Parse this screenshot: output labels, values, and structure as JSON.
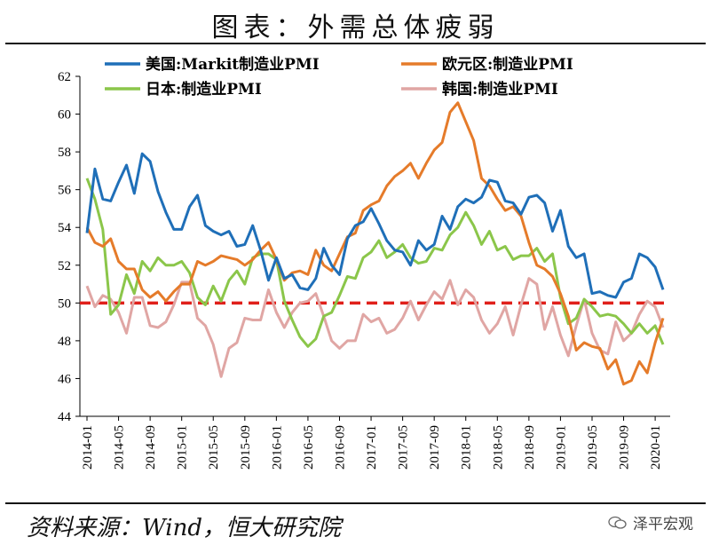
{
  "header": {
    "title": "图表：外需总体疲弱"
  },
  "footer": {
    "source": "资料来源：Wind，恒大研究院",
    "watermark": "泽平宏观"
  },
  "chart_data": {
    "type": "line",
    "x": [
      "2014-01",
      "2014-02",
      "2014-03",
      "2014-04",
      "2014-05",
      "2014-06",
      "2014-07",
      "2014-08",
      "2014-09",
      "2014-10",
      "2014-11",
      "2014-12",
      "2015-01",
      "2015-02",
      "2015-03",
      "2015-04",
      "2015-05",
      "2015-06",
      "2015-07",
      "2015-08",
      "2015-09",
      "2015-10",
      "2015-11",
      "2015-12",
      "2016-01",
      "2016-02",
      "2016-03",
      "2016-04",
      "2016-05",
      "2016-06",
      "2016-07",
      "2016-08",
      "2016-09",
      "2016-10",
      "2016-11",
      "2016-12",
      "2017-01",
      "2017-02",
      "2017-03",
      "2017-04",
      "2017-05",
      "2017-06",
      "2017-07",
      "2017-08",
      "2017-09",
      "2017-10",
      "2017-11",
      "2017-12",
      "2018-01",
      "2018-02",
      "2018-03",
      "2018-04",
      "2018-05",
      "2018-06",
      "2018-07",
      "2018-08",
      "2018-09",
      "2018-10",
      "2018-11",
      "2018-12",
      "2019-01",
      "2019-02",
      "2019-03",
      "2019-04",
      "2019-05",
      "2019-06",
      "2019-07",
      "2019-08",
      "2019-09",
      "2019-10",
      "2019-11",
      "2019-12",
      "2020-01",
      "2020-02"
    ],
    "xticks": [
      "2014-01",
      "2014-05",
      "2014-09",
      "2015-01",
      "2015-05",
      "2015-09",
      "2016-01",
      "2016-05",
      "2016-09",
      "2017-01",
      "2017-05",
      "2017-09",
      "2018-01",
      "2018-05",
      "2018-09",
      "2019-01",
      "2019-05",
      "2019-09",
      "2020-01"
    ],
    "ylim": [
      44,
      62
    ],
    "yticks": [
      44,
      46,
      48,
      50,
      52,
      54,
      56,
      58,
      60,
      62
    ],
    "reference_line": {
      "y": 50,
      "color": "#e0201b",
      "style": "dashed"
    },
    "legend_placement": "top",
    "series": [
      {
        "name": "美国:Markit制造业PMI",
        "color": "#1f6fb8",
        "values": [
          53.7,
          57.1,
          55.5,
          55.4,
          56.4,
          57.3,
          55.8,
          57.9,
          57.5,
          55.9,
          54.8,
          53.9,
          53.9,
          55.1,
          55.7,
          54.1,
          53.8,
          53.6,
          53.8,
          53.0,
          53.1,
          54.1,
          52.8,
          51.2,
          52.4,
          51.3,
          51.5,
          50.8,
          50.7,
          51.3,
          52.9,
          52.0,
          51.5,
          53.4,
          54.1,
          54.3,
          55.0,
          54.2,
          53.3,
          52.8,
          52.7,
          52.0,
          53.3,
          52.8,
          53.1,
          54.6,
          53.9,
          55.1,
          55.5,
          55.3,
          55.6,
          56.5,
          56.4,
          55.4,
          55.3,
          54.7,
          55.6,
          55.7,
          55.3,
          53.8,
          54.9,
          53.0,
          52.4,
          52.6,
          50.5,
          50.6,
          50.4,
          50.3,
          51.1,
          51.3,
          52.6,
          52.4,
          51.9,
          50.7
        ]
      },
      {
        "name": "欧元区:制造业PMI",
        "color": "#e57b2a",
        "values": [
          54.0,
          53.2,
          53.0,
          53.4,
          52.2,
          51.8,
          51.8,
          50.7,
          50.3,
          50.6,
          50.1,
          50.6,
          51.0,
          51.0,
          52.2,
          52.0,
          52.2,
          52.5,
          52.4,
          52.3,
          52.0,
          52.3,
          52.8,
          53.2,
          52.3,
          51.2,
          51.6,
          51.7,
          51.5,
          52.8,
          52.0,
          51.7,
          52.6,
          53.5,
          53.7,
          54.9,
          55.2,
          55.4,
          56.2,
          56.7,
          57.0,
          57.4,
          56.6,
          57.4,
          58.1,
          58.5,
          60.1,
          60.6,
          59.6,
          58.6,
          56.6,
          56.2,
          55.5,
          54.9,
          55.1,
          54.6,
          53.2,
          52.0,
          51.8,
          51.4,
          50.5,
          49.3,
          47.5,
          47.9,
          47.7,
          47.6,
          46.5,
          47.0,
          45.7,
          45.9,
          46.9,
          46.3,
          47.9,
          49.2
        ]
      },
      {
        "name": "日本:制造业PMI",
        "color": "#8bc64a",
        "values": [
          56.6,
          55.5,
          53.9,
          49.4,
          49.9,
          51.5,
          50.5,
          52.2,
          51.7,
          52.4,
          52.0,
          52.0,
          52.2,
          51.6,
          50.3,
          49.9,
          50.9,
          50.1,
          51.2,
          51.7,
          51.0,
          52.4,
          52.6,
          52.6,
          52.3,
          50.1,
          49.1,
          48.2,
          47.7,
          48.1,
          49.3,
          49.5,
          50.4,
          51.4,
          51.3,
          52.4,
          52.7,
          53.3,
          52.4,
          52.7,
          53.1,
          52.4,
          52.1,
          52.2,
          52.9,
          52.8,
          53.6,
          54.0,
          54.8,
          54.1,
          53.1,
          53.8,
          52.8,
          53.0,
          52.3,
          52.5,
          52.5,
          52.9,
          52.2,
          52.6,
          50.3,
          48.9,
          49.2,
          50.2,
          49.8,
          49.3,
          49.4,
          49.3,
          48.9,
          48.4,
          48.9,
          48.4,
          48.8,
          47.8
        ]
      },
      {
        "name": "韩国:制造业PMI",
        "color": "#e0a6a4",
        "values": [
          50.9,
          49.8,
          50.4,
          50.2,
          49.5,
          48.4,
          50.3,
          50.3,
          48.8,
          48.7,
          49.0,
          49.9,
          51.1,
          51.1,
          49.2,
          48.8,
          47.8,
          46.1,
          47.6,
          47.9,
          49.2,
          49.1,
          49.1,
          50.7,
          49.5,
          48.7,
          49.5,
          50.0,
          50.1,
          50.5,
          49.3,
          48.0,
          47.6,
          48.0,
          48.0,
          49.4,
          49.0,
          49.2,
          48.4,
          48.6,
          49.2,
          50.1,
          49.1,
          49.9,
          50.6,
          50.2,
          51.2,
          49.9,
          50.7,
          50.3,
          49.1,
          48.4,
          48.9,
          49.8,
          48.3,
          49.9,
          51.3,
          51.0,
          48.6,
          49.8,
          48.3,
          47.2,
          48.8,
          50.2,
          48.4,
          47.5,
          47.3,
          49.0,
          48.0,
          48.4,
          49.4,
          50.1,
          49.8,
          48.7
        ]
      }
    ]
  }
}
